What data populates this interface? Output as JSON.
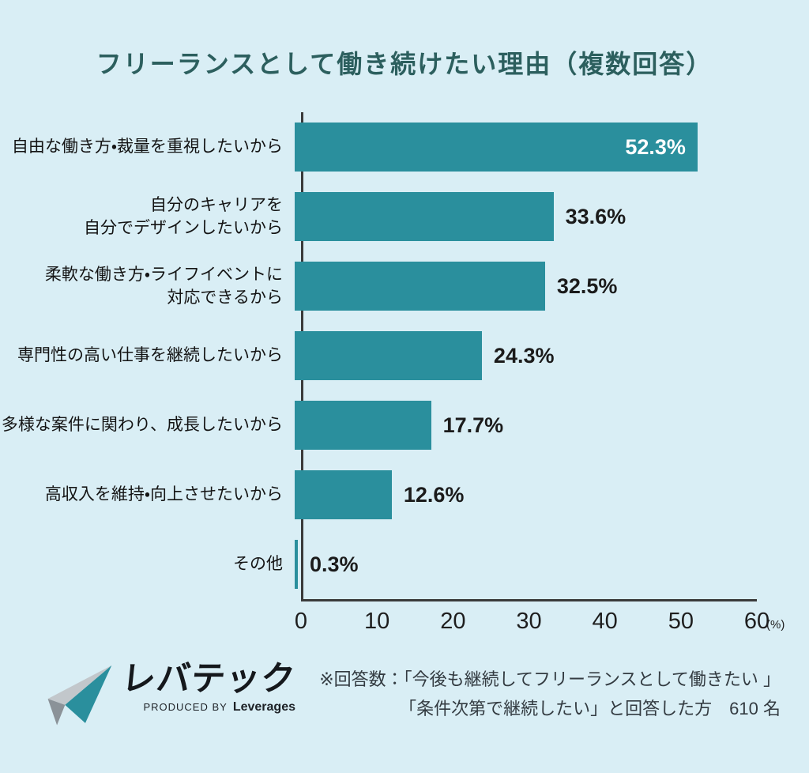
{
  "chart_data": {
    "type": "bar",
    "orientation": "horizontal",
    "title": "フリーランスとして働き続けたい理由（複数回答）",
    "categories": [
      "自由な働き方・裁量を重視したいから",
      "自分のキャリアを\n自分でデザインしたいから",
      "柔軟な働き方・ライフイベントに\n対応できるから",
      "専門性の高い仕事を継続したいから",
      "多様な案件に関わり、成長したいから",
      "高収入を維持・向上させたいから",
      "その他"
    ],
    "values": [
      52.3,
      33.6,
      32.5,
      24.3,
      17.7,
      12.6,
      0.3
    ],
    "value_labels": [
      "52.3%",
      "33.6%",
      "32.5%",
      "24.3%",
      "17.7%",
      "12.6%",
      "0.3%"
    ],
    "xlim": [
      0,
      60
    ],
    "x_ticks": [
      "0",
      "10",
      "20",
      "30",
      "40",
      "50",
      "60"
    ],
    "x_unit": "(%)",
    "bar_color": "#2a8f9d",
    "background_color": "#d9eef5",
    "grid": false,
    "legend": false
  },
  "footer": {
    "logo": {
      "brand": "レバテック",
      "produced_by": "PRODUCED BY",
      "company": "Leverages"
    },
    "note_line1": "※回答数：「今後も継続してフリーランスとして働きたい 」",
    "note_line2": "「条件次第で継続したい」と回答した方　610 名"
  },
  "colors": {
    "title": "#2c5f5e",
    "axis": "#3a3a3a",
    "value_text": "#1b1b1b",
    "value_text_inside": "#ffffff"
  }
}
